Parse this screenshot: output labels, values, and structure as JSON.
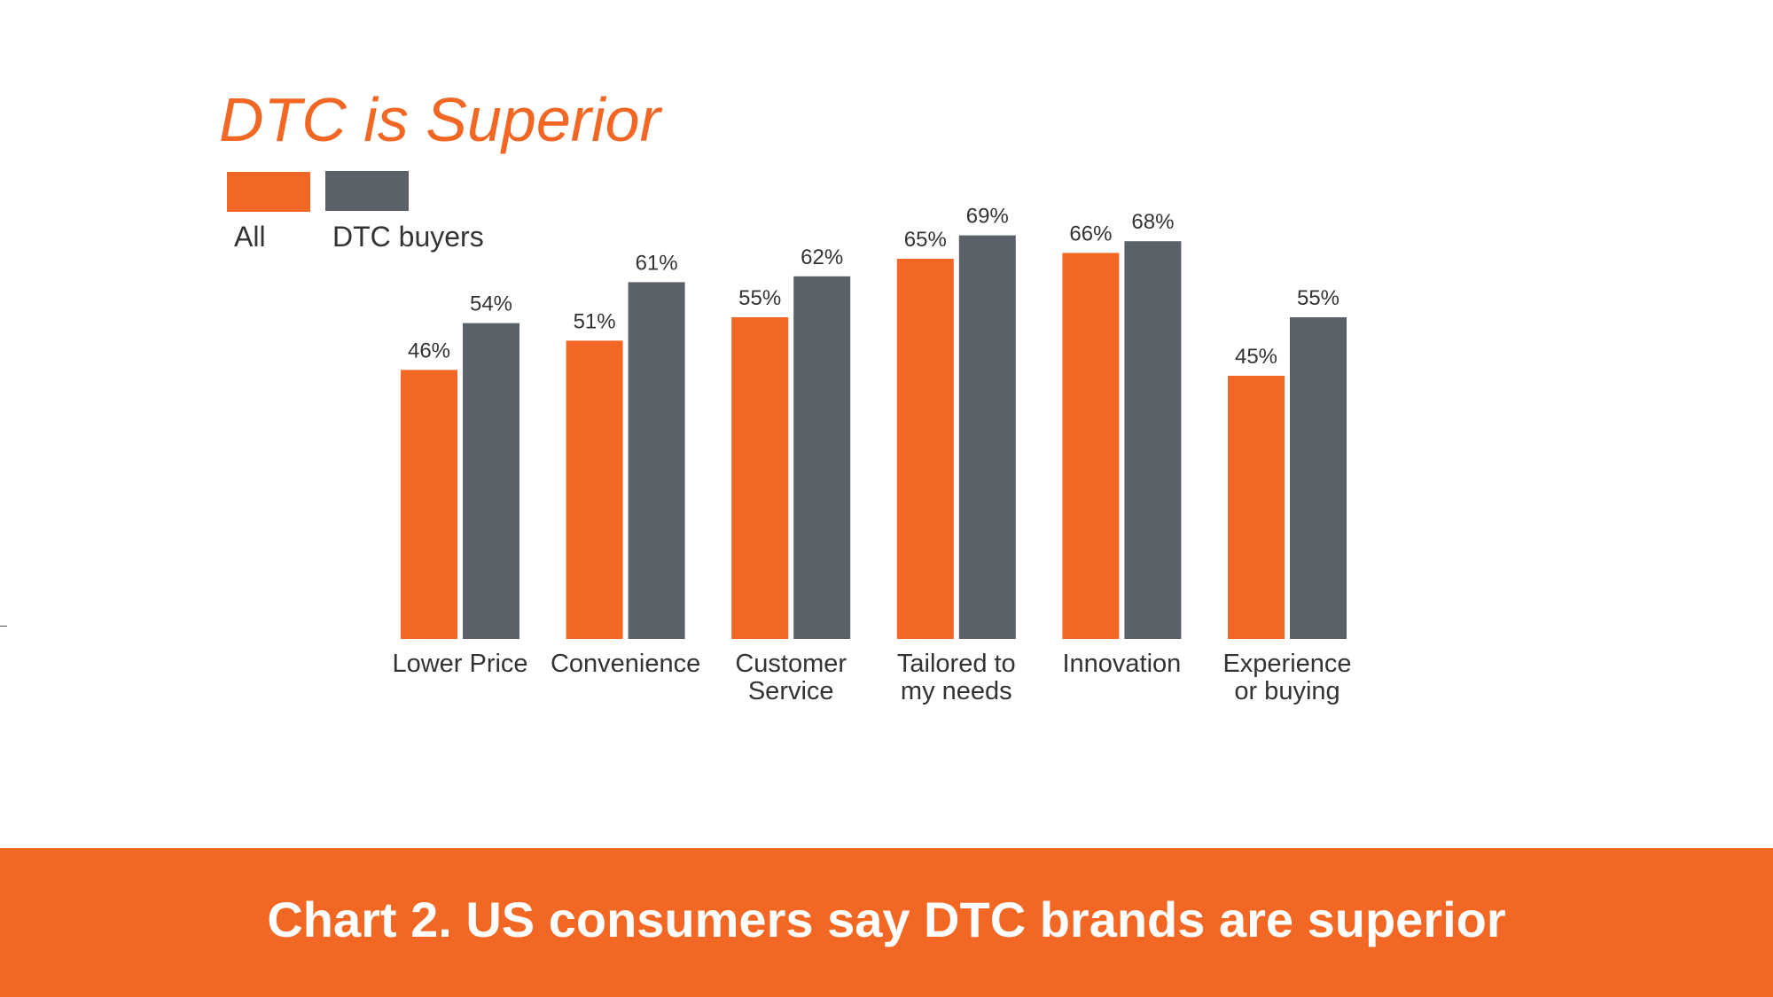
{
  "colors": {
    "all": "#f26724",
    "dtc": "#5a6168",
    "text": "#333333",
    "footer_bg": "#f26724",
    "footer_text": "#ffffff"
  },
  "footer": {
    "caption": "Chart 2. US consumers say DTC brands are superior"
  },
  "chart_data": {
    "type": "bar",
    "title": "DTC is Superior",
    "legend_position": "top-left",
    "grid": false,
    "categories": [
      [
        "Lower Price"
      ],
      [
        "Convenience"
      ],
      [
        "Customer",
        "Service"
      ],
      [
        "Tailored to",
        "my needs"
      ],
      [
        "Innovation"
      ],
      [
        "Experience",
        "or buying"
      ]
    ],
    "series": [
      {
        "name": "All",
        "values": [
          46,
          51,
          55,
          65,
          66,
          45
        ]
      },
      {
        "name": "DTC buyers",
        "values": [
          54,
          61,
          62,
          69,
          68,
          55
        ]
      }
    ],
    "value_suffix": "%",
    "ylim": [
      0,
      100
    ]
  }
}
